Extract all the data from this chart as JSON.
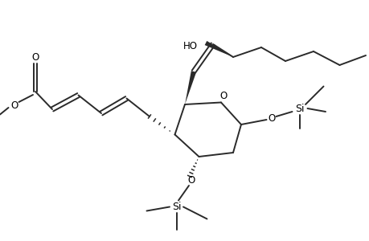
{
  "bg_color": "#ffffff",
  "line_color": "#2a2a2a",
  "text_color": "#000000",
  "lw": 1.4,
  "fs": 8.5,
  "figsize": [
    4.6,
    3.0
  ],
  "dpi": 100,
  "xlim": [
    0,
    9.2
  ],
  "ylim": [
    0,
    6.0
  ]
}
